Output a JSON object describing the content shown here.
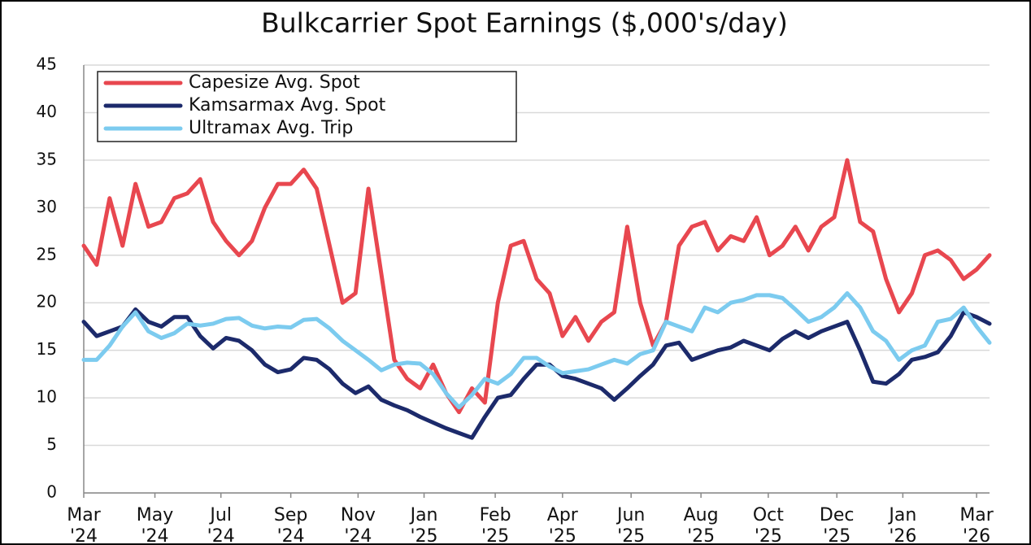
{
  "chart_data": {
    "type": "line",
    "title": "Bulkcarrier Spot Earnings ($,000's/day)",
    "ylim": [
      0,
      45
    ],
    "yticks": [
      0,
      5,
      10,
      15,
      20,
      25,
      30,
      35,
      40,
      45
    ],
    "xlim": [
      0,
      70
    ],
    "xticks": [
      {
        "value": 0,
        "label": "Mar '24"
      },
      {
        "value": 5.5,
        "label": "May '24"
      },
      {
        "value": 10.6,
        "label": "Jul '24"
      },
      {
        "value": 16,
        "label": "Sep '24"
      },
      {
        "value": 21.2,
        "label": "Nov '24"
      },
      {
        "value": 26.3,
        "label": "Jan '25"
      },
      {
        "value": 31.8,
        "label": "Feb '25"
      },
      {
        "value": 37,
        "label": "Apr '25"
      },
      {
        "value": 42.3,
        "label": "Jun '25"
      },
      {
        "value": 47.7,
        "label": "Aug '25"
      },
      {
        "value": 52.9,
        "label": "Oct '25"
      },
      {
        "value": 58.2,
        "label": "Dec '25"
      },
      {
        "value": 63.3,
        "label": "Jan '26"
      },
      {
        "value": 69,
        "label": "Mar '26"
      }
    ],
    "grid": true,
    "legend": "upper left",
    "series": [
      {
        "name": "Capesize Avg. Spot",
        "color": "#e8474f",
        "values": [
          26,
          24,
          31,
          26,
          32.5,
          28,
          28.5,
          31,
          31.5,
          33,
          28.5,
          26.5,
          25,
          26.5,
          30,
          32.5,
          32.5,
          34,
          32,
          26,
          20,
          21,
          32,
          23,
          14,
          12,
          11,
          13.5,
          10.5,
          8.5,
          11,
          9.5,
          20,
          26,
          26.5,
          22.5,
          21,
          16.5,
          18.5,
          16,
          18,
          19,
          28,
          20,
          15.5,
          18,
          26,
          28,
          28.5,
          25.5,
          27,
          26.5,
          29,
          25,
          26,
          28,
          25.5,
          28,
          29,
          35,
          28.5,
          27.5,
          22.5,
          19,
          21,
          25,
          25.5,
          24.5,
          22.5,
          23.5,
          25
        ]
      },
      {
        "name": "Kamsarmax Avg. Spot",
        "color": "#1c2a6b",
        "values": [
          18,
          16.5,
          17,
          17.5,
          19.3,
          18,
          17.5,
          18.5,
          18.5,
          16.5,
          15.2,
          16.3,
          16,
          15,
          13.5,
          12.7,
          13,
          14.2,
          14,
          13,
          11.5,
          10.5,
          11.2,
          9.8,
          9.2,
          8.7,
          8,
          7.4,
          6.8,
          6.3,
          5.8,
          8,
          10,
          10.3,
          12,
          13.5,
          13.5,
          12.3,
          12,
          11.5,
          11,
          9.8,
          11,
          12.3,
          13.5,
          15.5,
          15.8,
          14,
          14.5,
          15,
          15.3,
          16,
          15.5,
          15,
          16.2,
          17,
          16.3,
          17,
          17.5,
          18,
          15,
          11.7,
          11.5,
          12.5,
          14,
          14.3,
          14.8,
          16.5,
          19,
          18.5,
          17.8
        ]
      },
      {
        "name": "Ultramax Avg. Trip",
        "color": "#7ccbef",
        "values": [
          14,
          14,
          15.5,
          17.5,
          19,
          17,
          16.3,
          16.8,
          17.8,
          17.6,
          17.8,
          18.3,
          18.4,
          17.6,
          17.3,
          17.5,
          17.4,
          18.2,
          18.3,
          17.3,
          16,
          15,
          14,
          12.9,
          13.5,
          13.7,
          13.6,
          12.5,
          10.5,
          9,
          10.3,
          12,
          11.5,
          12.5,
          14.2,
          14.2,
          13.3,
          12.6,
          12.8,
          13,
          13.5,
          14,
          13.6,
          14.6,
          15,
          18,
          17.5,
          17,
          19.5,
          19,
          20,
          20.3,
          20.8,
          20.8,
          20.5,
          19.3,
          18,
          18.5,
          19.5,
          21,
          19.5,
          17,
          16,
          14,
          15,
          15.5,
          18,
          18.3,
          19.5,
          17.5,
          15.8
        ]
      }
    ]
  }
}
